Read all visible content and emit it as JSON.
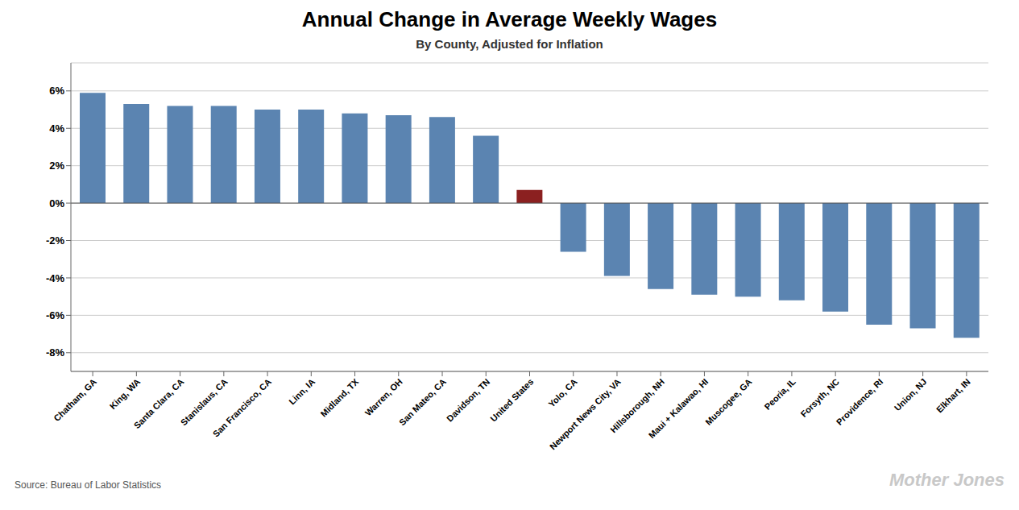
{
  "chart_data": {
    "type": "bar",
    "title": "Annual Change in Average Weekly Wages",
    "subtitle": "By County, Adjusted for Inflation",
    "annotations": [
      "Source: Bureau of Labor Statistics",
      "Mother Jones"
    ],
    "categories": [
      "Chatham, GA",
      "King, WA",
      "Santa Clara, CA",
      "Stanislaus, CA",
      "San Francisco, CA",
      "Linn, IA",
      "Midland, TX",
      "Warren, OH",
      "San Mateo, CA",
      "Davidson, TN",
      "United States",
      "Yolo, CA",
      "Newport News City, VA",
      "Hillsborough, NH",
      "Maui + Kalawao, HI",
      "Muscogee, GA",
      "Peoria, IL",
      "Forsyth, NC",
      "Providence, RI",
      "Union, NJ",
      "Elkhart, IN"
    ],
    "values": [
      5.9,
      5.3,
      5.2,
      5.2,
      5.0,
      5.0,
      4.8,
      4.7,
      4.6,
      3.6,
      0.7,
      -2.6,
      -3.9,
      -4.6,
      -4.9,
      -5.0,
      -5.2,
      -5.8,
      -6.5,
      -6.7,
      -7.2
    ],
    "colors": [
      "#5b84b1",
      "#5b84b1",
      "#5b84b1",
      "#5b84b1",
      "#5b84b1",
      "#5b84b1",
      "#5b84b1",
      "#5b84b1",
      "#5b84b1",
      "#5b84b1",
      "#8b2020",
      "#5b84b1",
      "#5b84b1",
      "#5b84b1",
      "#5b84b1",
      "#5b84b1",
      "#5b84b1",
      "#5b84b1",
      "#5b84b1",
      "#5b84b1",
      "#5b84b1"
    ],
    "ylim": [
      -9.0,
      7.5
    ],
    "yticks": [
      {
        "value": -8,
        "label": "-8%"
      },
      {
        "value": -6,
        "label": "-6%"
      },
      {
        "value": -4,
        "label": "-4%"
      },
      {
        "value": -2,
        "label": "-2%"
      },
      {
        "value": 0,
        "label": "0%"
      },
      {
        "value": 2,
        "label": "2%"
      },
      {
        "value": 4,
        "label": "4%"
      },
      {
        "value": 6,
        "label": "6%"
      }
    ],
    "grid": true
  }
}
